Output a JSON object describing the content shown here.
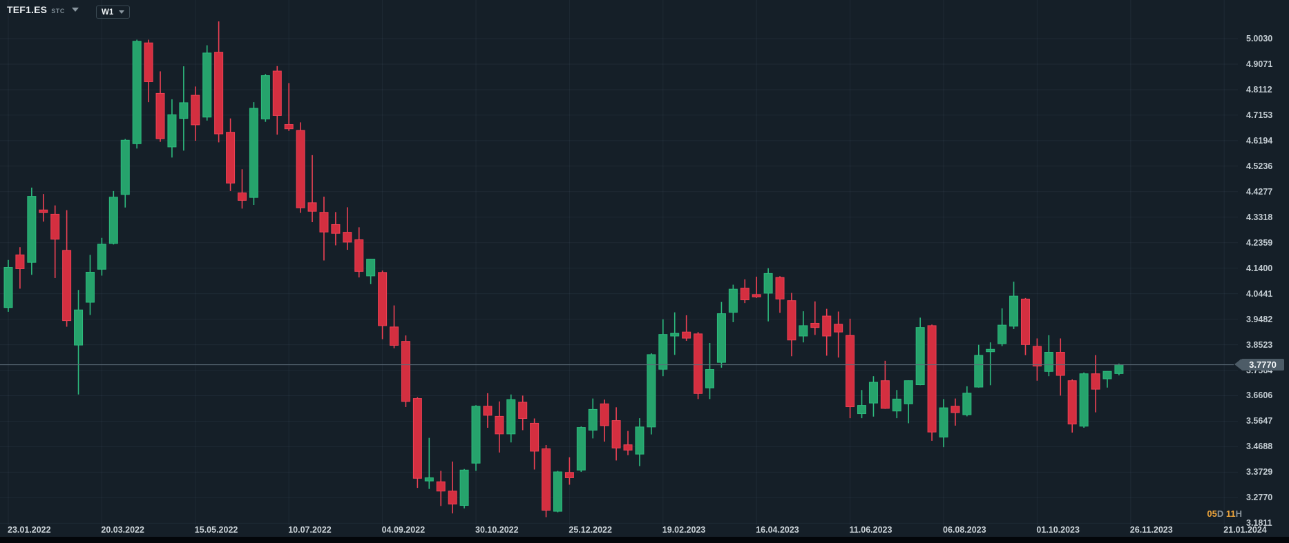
{
  "header": {
    "symbol": "TEF1.ES",
    "exchange_suffix": "STC",
    "timeframe": "W1"
  },
  "price_axis": {
    "labels": [
      "5.0030",
      "4.9071",
      "4.8112",
      "4.7153",
      "4.6194",
      "4.5236",
      "4.4277",
      "4.3318",
      "4.2359",
      "4.1400",
      "4.0441",
      "3.9482",
      "3.8523",
      "3.7564",
      "3.6606",
      "3.5647",
      "3.4688",
      "3.3729",
      "3.2770",
      "3.1811"
    ]
  },
  "time_axis": {
    "labels": [
      "23.01.2022",
      "20.03.2022",
      "15.05.2022",
      "10.07.2022",
      "04.09.2022",
      "30.10.2022",
      "25.12.2022",
      "19.02.2023",
      "16.04.2023",
      "11.06.2023",
      "06.08.2023",
      "01.10.2023",
      "26.11.2023",
      "21.01.2024"
    ]
  },
  "current_price": {
    "value": "3.7770",
    "numeric": 3.777
  },
  "candle_countdown": {
    "days": "05",
    "days_unit": "D",
    "hours": "11",
    "hours_unit": "H"
  },
  "colors": {
    "background": "#151f28",
    "grid": "rgba(160,190,210,0.07)",
    "bull_fill": "#26a36c",
    "bull_stroke": "#2dbb7e",
    "bear_fill": "#d42f40",
    "bear_stroke": "#ee4154",
    "current_price_line": "#5c6c78",
    "price_tag_bg": "#4d5c67",
    "countdown_accent": "#eda43b"
  },
  "chart_data": {
    "type": "candlestick",
    "title": "TEF1.ES weekly (W1) candlestick chart",
    "interval": "W1",
    "start_date": "23.01.2022",
    "end_date": "26.11.2023",
    "x_tick_labels": [
      "23.01.2022",
      "20.03.2022",
      "15.05.2022",
      "10.07.2022",
      "04.09.2022",
      "30.10.2022",
      "25.12.2022",
      "19.02.2023",
      "16.04.2023",
      "11.06.2023",
      "06.08.2023",
      "01.10.2023",
      "26.11.2023",
      "21.01.2024"
    ],
    "y_range": [
      3.1811,
      5.003
    ],
    "y_tick_step": 0.0959,
    "last_price": 3.777,
    "ohlc_format": [
      "open",
      "high",
      "low",
      "close"
    ],
    "candles": [
      [
        3.992,
        4.171,
        3.976,
        4.143
      ],
      [
        4.19,
        4.219,
        4.063,
        4.138
      ],
      [
        4.162,
        4.443,
        4.115,
        4.41
      ],
      [
        4.359,
        4.419,
        4.315,
        4.349
      ],
      [
        4.343,
        4.376,
        4.103,
        4.249
      ],
      [
        4.207,
        4.358,
        3.92,
        3.943
      ],
      [
        3.851,
        4.058,
        3.665,
        3.983
      ],
      [
        4.012,
        4.19,
        3.964,
        4.125
      ],
      [
        4.136,
        4.254,
        4.112,
        4.23
      ],
      [
        4.233,
        4.43,
        4.229,
        4.407
      ],
      [
        4.417,
        4.626,
        4.368,
        4.621
      ],
      [
        4.608,
        4.999,
        4.59,
        4.993
      ],
      [
        4.987,
        4.999,
        4.764,
        4.841
      ],
      [
        4.797,
        4.88,
        4.615,
        4.627
      ],
      [
        4.596,
        4.775,
        4.556,
        4.717
      ],
      [
        4.703,
        4.899,
        4.582,
        4.762
      ],
      [
        4.79,
        4.823,
        4.619,
        4.679
      ],
      [
        4.708,
        4.978,
        4.695,
        4.949
      ],
      [
        4.952,
        5.068,
        4.613,
        4.645
      ],
      [
        4.651,
        4.703,
        4.43,
        4.46
      ],
      [
        4.423,
        4.512,
        4.364,
        4.395
      ],
      [
        4.406,
        4.764,
        4.378,
        4.741
      ],
      [
        4.701,
        4.87,
        4.69,
        4.864
      ],
      [
        4.881,
        4.9,
        4.642,
        4.714
      ],
      [
        4.68,
        4.836,
        4.656,
        4.664
      ],
      [
        4.658,
        4.688,
        4.348,
        4.367
      ],
      [
        4.386,
        4.565,
        4.313,
        4.354
      ],
      [
        4.35,
        4.409,
        4.169,
        4.276
      ],
      [
        4.304,
        4.351,
        4.226,
        4.271
      ],
      [
        4.275,
        4.369,
        4.209,
        4.238
      ],
      [
        4.247,
        4.294,
        4.105,
        4.128
      ],
      [
        4.111,
        4.175,
        4.08,
        4.174
      ],
      [
        4.124,
        4.131,
        3.873,
        3.924
      ],
      [
        3.919,
        4.0,
        3.839,
        3.85
      ],
      [
        3.865,
        3.887,
        3.618,
        3.639
      ],
      [
        3.65,
        3.655,
        3.314,
        3.35
      ],
      [
        3.34,
        3.502,
        3.31,
        3.352
      ],
      [
        3.337,
        3.378,
        3.246,
        3.302
      ],
      [
        3.302,
        3.413,
        3.218,
        3.253
      ],
      [
        3.248,
        3.385,
        3.237,
        3.381
      ],
      [
        3.407,
        3.625,
        3.378,
        3.621
      ],
      [
        3.621,
        3.67,
        3.54,
        3.587
      ],
      [
        3.583,
        3.639,
        3.447,
        3.517
      ],
      [
        3.517,
        3.665,
        3.485,
        3.646
      ],
      [
        3.636,
        3.661,
        3.531,
        3.575
      ],
      [
        3.557,
        3.575,
        3.383,
        3.452
      ],
      [
        3.461,
        3.475,
        3.204,
        3.23
      ],
      [
        3.226,
        3.378,
        3.222,
        3.374
      ],
      [
        3.372,
        3.429,
        3.326,
        3.352
      ],
      [
        3.381,
        3.545,
        3.374,
        3.541
      ],
      [
        3.531,
        3.65,
        3.5,
        3.609
      ],
      [
        3.63,
        3.646,
        3.488,
        3.548
      ],
      [
        3.567,
        3.617,
        3.417,
        3.464
      ],
      [
        3.476,
        3.528,
        3.437,
        3.456
      ],
      [
        3.441,
        3.576,
        3.396,
        3.543
      ],
      [
        3.543,
        3.82,
        3.515,
        3.815
      ],
      [
        3.76,
        3.948,
        3.734,
        3.891
      ],
      [
        3.885,
        3.974,
        3.814,
        3.895
      ],
      [
        3.9,
        3.963,
        3.867,
        3.877
      ],
      [
        3.893,
        3.9,
        3.648,
        3.669
      ],
      [
        3.69,
        3.859,
        3.648,
        3.759
      ],
      [
        3.786,
        4.013,
        3.766,
        3.969
      ],
      [
        3.974,
        4.078,
        3.937,
        4.061
      ],
      [
        4.065,
        4.098,
        4.009,
        4.021
      ],
      [
        4.041,
        4.108,
        4.028,
        4.032
      ],
      [
        4.046,
        4.14,
        3.94,
        4.12
      ],
      [
        4.105,
        4.11,
        3.972,
        4.024
      ],
      [
        4.018,
        4.047,
        3.809,
        3.87
      ],
      [
        3.885,
        3.978,
        3.861,
        3.924
      ],
      [
        3.933,
        4.015,
        3.889,
        3.917
      ],
      [
        3.96,
        3.987,
        3.811,
        3.885
      ],
      [
        3.929,
        3.977,
        3.804,
        3.9
      ],
      [
        3.887,
        3.95,
        3.576,
        3.619
      ],
      [
        3.593,
        3.682,
        3.576,
        3.624
      ],
      [
        3.633,
        3.734,
        3.582,
        3.711
      ],
      [
        3.717,
        3.792,
        3.611,
        3.613
      ],
      [
        3.603,
        3.682,
        3.576,
        3.648
      ],
      [
        3.63,
        3.718,
        3.557,
        3.717
      ],
      [
        3.702,
        3.954,
        3.7,
        3.917
      ],
      [
        3.924,
        3.928,
        3.491,
        3.524
      ],
      [
        3.505,
        3.648,
        3.467,
        3.615
      ],
      [
        3.621,
        3.65,
        3.548,
        3.597
      ],
      [
        3.589,
        3.696,
        3.583,
        3.67
      ],
      [
        3.693,
        3.852,
        3.691,
        3.812
      ],
      [
        3.826,
        3.861,
        3.7,
        3.835
      ],
      [
        3.856,
        3.989,
        3.847,
        3.926
      ],
      [
        3.922,
        4.089,
        3.911,
        4.035
      ],
      [
        4.024,
        4.028,
        3.813,
        3.853
      ],
      [
        3.846,
        3.876,
        3.717,
        3.772
      ],
      [
        3.752,
        3.888,
        3.734,
        3.824
      ],
      [
        3.824,
        3.876,
        3.661,
        3.737
      ],
      [
        3.717,
        3.722,
        3.522,
        3.554
      ],
      [
        3.546,
        3.748,
        3.54,
        3.743
      ],
      [
        3.743,
        3.813,
        3.598,
        3.685
      ],
      [
        3.724,
        3.753,
        3.691,
        3.752
      ],
      [
        3.744,
        3.781,
        3.737,
        3.777
      ]
    ]
  }
}
